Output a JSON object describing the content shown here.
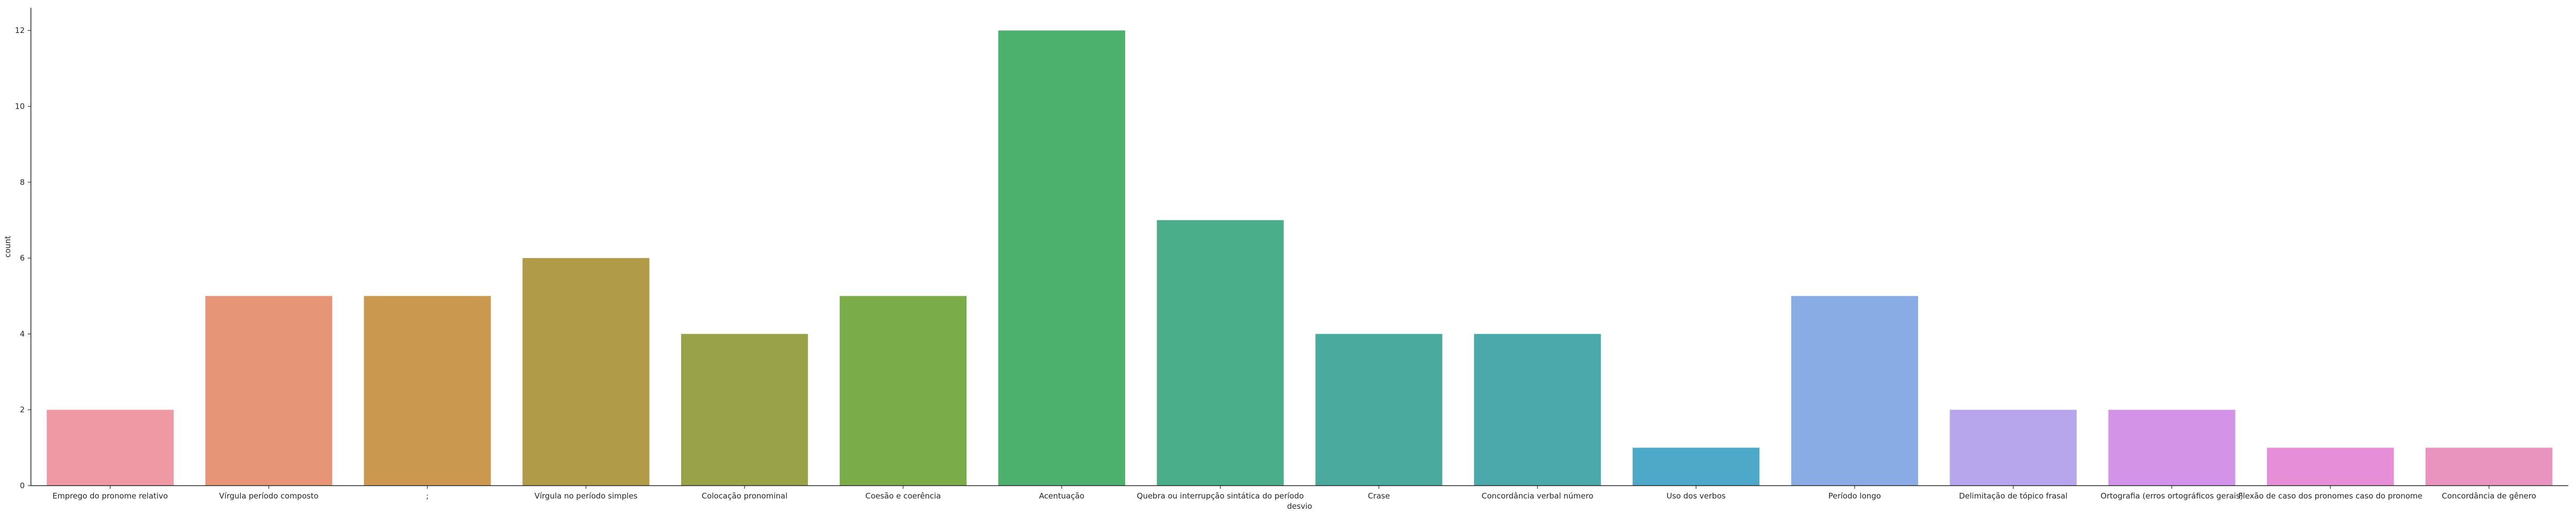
{
  "chart_data": {
    "type": "bar",
    "xlabel": "desvio",
    "ylabel": "count",
    "ylim": [
      0,
      12.6
    ],
    "yticks": [
      0,
      2,
      4,
      6,
      8,
      10,
      12
    ],
    "grid": false,
    "categories": [
      "Emprego do pronome relativo",
      "Vírgula período composto",
      ";",
      "Vírgula no período simples",
      "Colocação pronominal",
      "Coesão e coerência",
      "Acentuação",
      "Quebra ou interrupção sintática do período",
      "Crase",
      "Concordância verbal número",
      "Uso dos verbos",
      "Período longo",
      "Delimitação de tópico frasal",
      "Ortografia (erros ortográficos gerais)",
      "Flexão de caso dos pronomes caso do pronome",
      "Concordância de gênero"
    ],
    "values": [
      2,
      5,
      5,
      6,
      4,
      5,
      12,
      7,
      4,
      4,
      1,
      5,
      2,
      2,
      1,
      1
    ],
    "colors": [
      "#ee99a3",
      "#e79577",
      "#cb9850",
      "#b09c48",
      "#9aa249",
      "#7bac4a",
      "#4cb16d",
      "#4aae8a",
      "#4aaa9e",
      "#4ba9ab",
      "#4ea8c8",
      "#89ace4",
      "#b7a6eb",
      "#d393e6",
      "#e68ed8",
      "#e993bf"
    ]
  }
}
